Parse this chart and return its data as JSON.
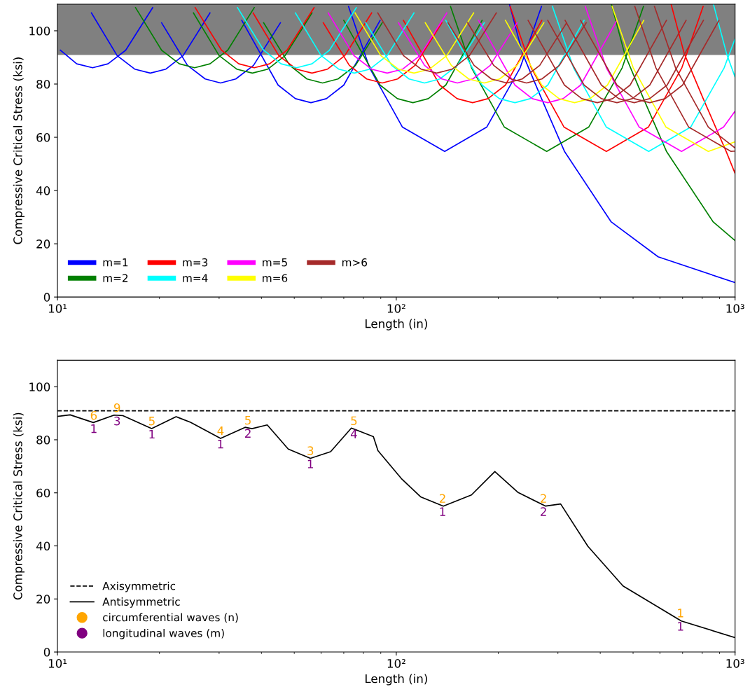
{
  "chart_data": [
    {
      "type": "line",
      "xlabel": "Length (in)",
      "ylabel": "Compressive Critical Stress (ksi)",
      "log": "x",
      "xlim": [
        10,
        1000
      ],
      "xticks": [
        {
          "value": 10,
          "label": "10¹"
        },
        {
          "value": 100,
          "label": "10²"
        },
        {
          "value": 1000,
          "label": "10³"
        }
      ],
      "ylim": [
        0,
        110
      ],
      "yticks": [
        0,
        20,
        40,
        60,
        80,
        100
      ],
      "grid": false,
      "legend": "bottom left",
      "bands": [
        {
          "axis": "y",
          "from": 90.9,
          "to": 110,
          "color": "#808080"
        }
      ],
      "series": [
        {
          "name": "m=1",
          "color": "#0000ff",
          "x": [
            216,
            236,
            268,
            314,
            431,
            593,
            1000
          ],
          "values": [
            109.8,
            91.4,
            74.7,
            54.6,
            28.2,
            15.1,
            5.4
          ]
        },
        {
          "color": "#0000ff",
          "x": [
            72.3,
            83.4,
            104.3,
            139,
            184.9,
            232.1,
            268.3
          ],
          "values": [
            109.1,
            86.1,
            63.8,
            54.7,
            63.8,
            86.1,
            109.1
          ]
        },
        {
          "color": "#0000ff",
          "x": [
            35,
            44.8,
            50.4,
            56,
            62.2,
            70,
            89.6
          ],
          "values": [
            103.9,
            79.6,
            74.5,
            73,
            74.5,
            79.6,
            103.9
          ]
        },
        {
          "color": "#0000ff",
          "x": [
            20.3,
            24.2,
            27.3,
            30.3,
            33.6,
            37.9,
            45.5
          ],
          "values": [
            103,
            87,
            81.9,
            80.4,
            81.9,
            87,
            103
          ]
        },
        {
          "color": "#0000ff",
          "x": [
            12.6,
            15.0,
            16.9,
            18.8,
            20.9,
            23.5,
            28.2
          ],
          "values": [
            106.7,
            90.7,
            85.6,
            84.1,
            85.6,
            90.7,
            106.7
          ]
        },
        {
          "color": "#0000ff",
          "x": [
            10.2,
            11.4,
            12.7,
            14.1,
            15.9,
            19.1
          ],
          "values": [
            92.7,
            87.6,
            86.1,
            87.6,
            92.7,
            108.7
          ]
        },
        {
          "name": "m=2",
          "color": "#008000",
          "x": [
            432,
            472,
            536,
            628,
            862,
            1000
          ],
          "values": [
            109.8,
            91.4,
            74.7,
            54.6,
            28.2,
            21.2
          ]
        },
        {
          "color": "#008000",
          "x": [
            144.6,
            166.8,
            208.5,
            278,
            369.7,
            464.3,
            536.5
          ],
          "values": [
            109.1,
            86.1,
            63.8,
            54.7,
            63.8,
            86.1,
            109.1
          ]
        },
        {
          "color": "#008000",
          "x": [
            70,
            89.6,
            100.8,
            112,
            124.3,
            140,
            179.2
          ],
          "values": [
            103.9,
            79.6,
            74.5,
            73,
            74.5,
            79.6,
            103.9
          ]
        },
        {
          "color": "#008000",
          "x": [
            40.6,
            48.5,
            54.5,
            60.6,
            67.3,
            75.8,
            90.9
          ],
          "values": [
            103,
            87,
            81.9,
            80.4,
            81.9,
            87,
            103
          ]
        },
        {
          "color": "#008000",
          "x": [
            25.2,
            30.0,
            33.8,
            37.6,
            41.8,
            47.0,
            56.4
          ],
          "values": [
            106.7,
            90.7,
            85.6,
            84.1,
            85.6,
            90.7,
            106.7
          ]
        },
        {
          "color": "#008000",
          "x": [
            17,
            20.3,
            22.9,
            25.4,
            28.2,
            31.8,
            38.1
          ],
          "values": [
            108.7,
            92.7,
            87.6,
            86.1,
            87.6,
            92.7,
            108.7
          ]
        },
        {
          "name": "m=3",
          "color": "#ff0000",
          "x": [
            648,
            708,
            804,
            942,
            1000
          ],
          "values": [
            109.8,
            91.4,
            74.7,
            54.6,
            46.4
          ]
        },
        {
          "color": "#ff0000",
          "x": [
            216.8,
            250.2,
            312.8,
            417,
            554.6,
            696.4,
            804.8
          ],
          "values": [
            109.1,
            86.1,
            63.8,
            54.7,
            63.8,
            86.1,
            109.1
          ]
        },
        {
          "color": "#ff0000",
          "x": [
            105,
            134.4,
            151.2,
            168,
            186.5,
            210,
            268.8
          ],
          "values": [
            103.9,
            79.6,
            74.5,
            73,
            74.5,
            79.6,
            103.9
          ]
        },
        {
          "color": "#ff0000",
          "x": [
            60.9,
            72.7,
            81.8,
            90.9,
            100.9,
            113.6,
            136.4
          ],
          "values": [
            103,
            87,
            81.9,
            80.4,
            81.9,
            87,
            103
          ]
        },
        {
          "color": "#ff0000",
          "x": [
            37.8,
            45,
            50.7,
            56.4,
            62.7,
            70.5,
            84.6
          ],
          "values": [
            106.7,
            90.7,
            85.6,
            84.1,
            85.6,
            90.7,
            106.7
          ]
        },
        {
          "color": "#ff0000",
          "x": [
            25.5,
            30.5,
            34.3,
            38.1,
            42.3,
            47.6,
            57.2
          ],
          "values": [
            108.7,
            92.7,
            87.6,
            86.1,
            87.6,
            92.7,
            108.7
          ]
        },
        {
          "name": "m=4",
          "color": "#00ffff",
          "x": [
            864,
            944,
            1000
          ],
          "values": [
            109.8,
            91.4,
            82.6
          ]
        },
        {
          "color": "#00ffff",
          "x": [
            289.1,
            333.6,
            417,
            556,
            739.5,
            928.5,
            1000
          ],
          "values": [
            109.1,
            86.1,
            63.8,
            54.7,
            63.8,
            86.1,
            97.0
          ]
        },
        {
          "color": "#00ffff",
          "x": [
            140,
            179.2,
            201.6,
            224,
            248.6,
            280,
            358.4
          ],
          "values": [
            103.9,
            79.6,
            74.5,
            73,
            74.5,
            79.6,
            103.9
          ]
        },
        {
          "color": "#00ffff",
          "x": [
            81.2,
            97,
            109.1,
            121.2,
            134.5,
            151.5,
            181.8
          ],
          "values": [
            103,
            87,
            81.9,
            80.4,
            81.9,
            87,
            103
          ]
        },
        {
          "color": "#00ffff",
          "x": [
            50.4,
            60,
            67.6,
            75.2,
            83.6,
            94,
            112.8
          ],
          "values": [
            106.7,
            90.7,
            85.6,
            84.1,
            85.6,
            90.7,
            106.7
          ]
        },
        {
          "color": "#00ffff",
          "x": [
            34,
            40.6,
            45.7,
            50.8,
            56.4,
            63.5,
            76.2
          ],
          "values": [
            108.7,
            92.7,
            87.6,
            86.1,
            87.6,
            92.7,
            108.7
          ]
        },
        {
          "name": "m=5",
          "color": "#ff00ff",
          "x": [
            361.4,
            417,
            521.3,
            695,
            924.4,
            1000
          ],
          "values": [
            109.1,
            86.1,
            63.8,
            54.7,
            63.8,
            69.8
          ]
        },
        {
          "color": "#ff00ff",
          "x": [
            175,
            224,
            252,
            280,
            310.8,
            350,
            448
          ],
          "values": [
            103.9,
            79.6,
            74.5,
            73,
            74.5,
            79.6,
            103.9
          ]
        },
        {
          "color": "#ff00ff",
          "x": [
            101.5,
            121.2,
            136.4,
            151.5,
            168.2,
            189.4,
            227.3
          ],
          "values": [
            103,
            87,
            81.9,
            80.4,
            81.9,
            87,
            103
          ]
        },
        {
          "color": "#ff00ff",
          "x": [
            63,
            75,
            84.5,
            94,
            104.5,
            117.5,
            141
          ],
          "values": [
            106.7,
            90.7,
            85.6,
            84.1,
            85.6,
            90.7,
            106.7
          ]
        },
        {
          "name": "m=6",
          "color": "#ffff00",
          "x": [
            433.7,
            500.4,
            625.5,
            834,
            1000
          ],
          "values": [
            109.1,
            86.1,
            63.8,
            54.7,
            58.3
          ]
        },
        {
          "color": "#ffff00",
          "x": [
            210,
            268.8,
            302.4,
            336,
            373,
            420,
            537.6
          ],
          "values": [
            103.9,
            79.6,
            74.5,
            73,
            74.5,
            79.6,
            103.9
          ]
        },
        {
          "color": "#ffff00",
          "x": [
            121.8,
            145.4,
            163.6,
            181.8,
            201.8,
            227.3,
            272.7
          ],
          "values": [
            103,
            87,
            81.9,
            80.4,
            81.9,
            87,
            103
          ]
        },
        {
          "color": "#ffff00",
          "x": [
            75.6,
            90,
            101.4,
            112.8,
            125.4,
            141,
            169.2
          ],
          "values": [
            106.7,
            90.7,
            85.6,
            84.1,
            85.6,
            90.7,
            106.7
          ]
        },
        {
          "name": "m>6",
          "color": "#a52a2a",
          "x": [
            506,
            583.8,
            729.8,
            973,
            1000
          ],
          "values": [
            109.1,
            86.1,
            63.8,
            54.7,
            54.8
          ]
        },
        {
          "color": "#a52a2a",
          "x": [
            245,
            313.6,
            352.8,
            392,
            435.1,
            490,
            627.2
          ],
          "values": [
            103.9,
            79.6,
            74.5,
            73,
            74.5,
            79.6,
            103.9
          ]
        },
        {
          "color": "#a52a2a",
          "x": [
            142.1,
            169.7,
            190.9,
            212.1,
            235.4,
            265.1,
            318.2
          ],
          "values": [
            103,
            87,
            81.9,
            80.4,
            81.9,
            87,
            103
          ]
        },
        {
          "color": "#a52a2a",
          "x": [
            88.2,
            105,
            118.3,
            131.6,
            146.3,
            164.5,
            197.4
          ],
          "values": [
            106.7,
            90.7,
            85.6,
            84.1,
            85.6,
            90.7,
            106.7
          ]
        },
        {
          "color": "#a52a2a",
          "x": [
            578.3,
            667.2,
            834,
            1000
          ],
          "values": [
            109.1,
            86.1,
            63.8,
            56.0
          ]
        },
        {
          "color": "#a52a2a",
          "x": [
            280,
            358.4,
            403.2,
            448,
            497.3,
            560,
            716.8
          ],
          "values": [
            103.9,
            79.6,
            74.5,
            73,
            74.5,
            79.6,
            103.9
          ]
        },
        {
          "color": "#a52a2a",
          "x": [
            162.4,
            193.9,
            218.2,
            242.4,
            269,
            303,
            363.6
          ],
          "values": [
            103,
            87,
            81.9,
            80.4,
            81.9,
            87,
            103
          ]
        },
        {
          "color": "#a52a2a",
          "x": [
            315,
            403.2,
            453.6,
            504,
            559.4,
            630,
            806.4
          ],
          "values": [
            103.9,
            79.6,
            74.5,
            73,
            74.5,
            79.6,
            103.9
          ]
        },
        {
          "color": "#a52a2a",
          "x": [
            350,
            448,
            504,
            560,
            621.6,
            700,
            896
          ],
          "values": [
            103.9,
            79.6,
            74.5,
            73,
            74.5,
            79.6,
            103.9
          ]
        }
      ]
    },
    {
      "type": "line",
      "xlabel": "Length (in)",
      "ylabel": "Compressive Critical Stress (ksi)",
      "log": "x",
      "xlim": [
        10,
        1000
      ],
      "xticks": [
        {
          "value": 10,
          "label": "10¹"
        },
        {
          "value": 100,
          "label": "10²"
        },
        {
          "value": 1000,
          "label": "10³"
        }
      ],
      "ylim": [
        0,
        110
      ],
      "yticks": [
        0,
        20,
        40,
        60,
        80,
        100
      ],
      "grid": false,
      "legend": "bottom left",
      "series": [
        {
          "name": "Axisymmetric",
          "color": "#000000",
          "line_style": "dashed",
          "x": [
            10,
            1000
          ],
          "values": [
            90.9,
            90.9
          ]
        },
        {
          "name": "Antisymmetric",
          "color": "#000000",
          "line_style": "solid",
          "x": [
            10.0,
            10.9,
            12.76,
            14.7,
            15.6,
            18.97,
            22.4,
            24.7,
            30.3,
            35.8,
            37.5,
            41.6,
            48,
            55.8,
            64,
            73.7,
            85.6,
            88.3,
            103.5,
            118,
            137.7,
            166.7,
            195.4,
            229,
            276,
            305.6,
            368,
            467,
            694,
            1000
          ],
          "values": [
            88.8,
            89.4,
            86.5,
            89.3,
            89.1,
            84.2,
            88.7,
            86.6,
            80.5,
            84.7,
            84.2,
            85.6,
            76.5,
            73.0,
            75.5,
            84.4,
            81.2,
            75.9,
            65.4,
            58.5,
            55.0,
            59.2,
            68.0,
            60.1,
            55.0,
            55.8,
            39.8,
            24.9,
            11.7,
            5.4
          ]
        },
        {
          "name": "circumferential waves (n)",
          "type": "scatter",
          "marker": "circle",
          "color": "#ffa500"
        },
        {
          "name": "longitudinal waves (m)",
          "type": "scatter",
          "marker": "circle",
          "color": "#800080"
        }
      ],
      "annotations": [
        {
          "text": "6",
          "x": 12.8,
          "y": 86.3
        },
        {
          "text": "1",
          "x": 12.8,
          "y": 86.3
        },
        {
          "text": "9",
          "x": 15.0,
          "y": 89.2
        },
        {
          "text": "3",
          "x": 15.0,
          "y": 89.2
        },
        {
          "text": "5",
          "x": 19.0,
          "y": 84.2
        },
        {
          "text": "1",
          "x": 19.0,
          "y": 84.2
        },
        {
          "text": "4",
          "x": 30.3,
          "y": 80.5
        },
        {
          "text": "1",
          "x": 30.3,
          "y": 80.5
        },
        {
          "text": "5",
          "x": 36.5,
          "y": 84.5
        },
        {
          "text": "2",
          "x": 36.5,
          "y": 84.5
        },
        {
          "text": "3",
          "x": 55.8,
          "y": 73.0
        },
        {
          "text": "1",
          "x": 55.8,
          "y": 73.0
        },
        {
          "text": "5",
          "x": 75,
          "y": 84.3
        },
        {
          "text": "4",
          "x": 75,
          "y": 84.3
        },
        {
          "text": "2",
          "x": 137,
          "y": 55.0
        },
        {
          "text": "1",
          "x": 137,
          "y": 55.0
        },
        {
          "text": "2",
          "x": 272,
          "y": 55.0
        },
        {
          "text": "2",
          "x": 272,
          "y": 55.0
        },
        {
          "text": "1",
          "x": 690,
          "y": 11.8
        },
        {
          "text": "1",
          "x": 690,
          "y": 11.8
        }
      ]
    }
  ]
}
